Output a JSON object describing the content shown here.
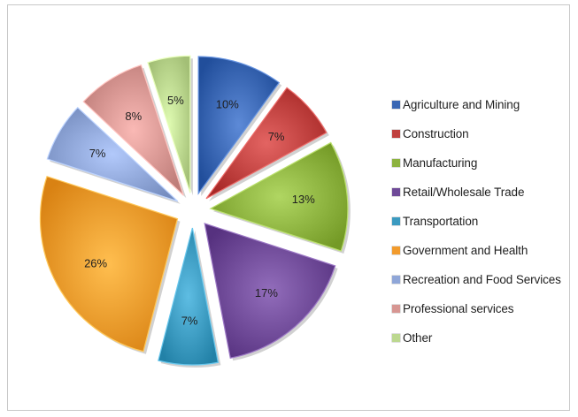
{
  "chart_data": {
    "type": "pie",
    "exploded": true,
    "style_3d": true,
    "legend_position": "right",
    "categories": [
      "Agriculture and Mining",
      "Construction",
      "Manufacturing",
      "Retail/Wholesale Trade",
      "Transportation",
      "Government and Health",
      "Recreation and Food Services",
      "Professional services",
      "Other"
    ],
    "values": [
      10,
      7,
      13,
      17,
      7,
      26,
      7,
      8,
      5
    ],
    "data_labels": [
      "10%",
      "7%",
      "13%",
      "17%",
      "7%",
      "26%",
      "7%",
      "8%",
      "5%"
    ],
    "colors": [
      "#3a67b4",
      "#c0413f",
      "#8db33f",
      "#6f4a98",
      "#3b9ac0",
      "#f29b2c",
      "#8fa6d8",
      "#d79692",
      "#bcd88f"
    ]
  }
}
